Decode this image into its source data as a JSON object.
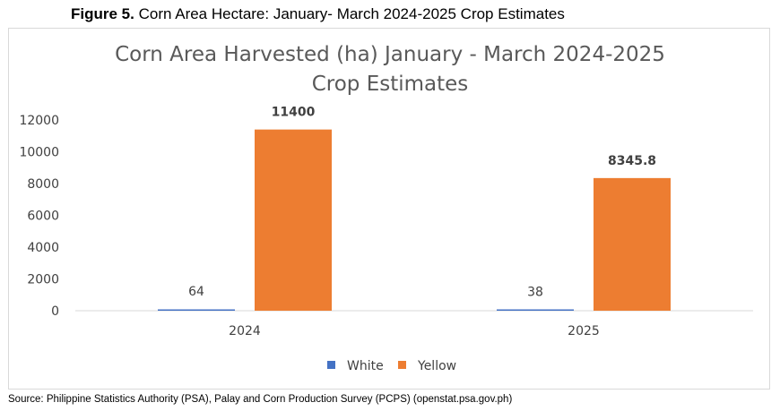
{
  "caption": {
    "label": "Figure 5.",
    "text": "Corn Area Hectare: January- March 2024-2025 Crop Estimates"
  },
  "source": "Source:  Philippine Statistics Authority (PSA), Palay and Corn Production Survey (PCPS) (openstat.psa.gov.ph)",
  "chart_data": {
    "type": "bar",
    "title": "Corn Area Harvested (ha) January - March 2024-2025 Crop Estimates",
    "title_lines": [
      "Corn Area Harvested (ha) January - March 2024-2025",
      "Crop Estimates"
    ],
    "categories": [
      "2024",
      "2025"
    ],
    "series": [
      {
        "name": "White",
        "values": [
          64,
          38
        ],
        "labels": [
          "64",
          "38"
        ],
        "color": "#4472c4"
      },
      {
        "name": "Yellow",
        "values": [
          11400,
          8345.8
        ],
        "labels": [
          "11400",
          "8345.8"
        ],
        "color": "#ed7d31"
      }
    ],
    "ylim": [
      0,
      12000
    ],
    "yticks": [
      0,
      2000,
      4000,
      6000,
      8000,
      10000,
      12000
    ],
    "grid": false,
    "legend_position": "bottom"
  }
}
